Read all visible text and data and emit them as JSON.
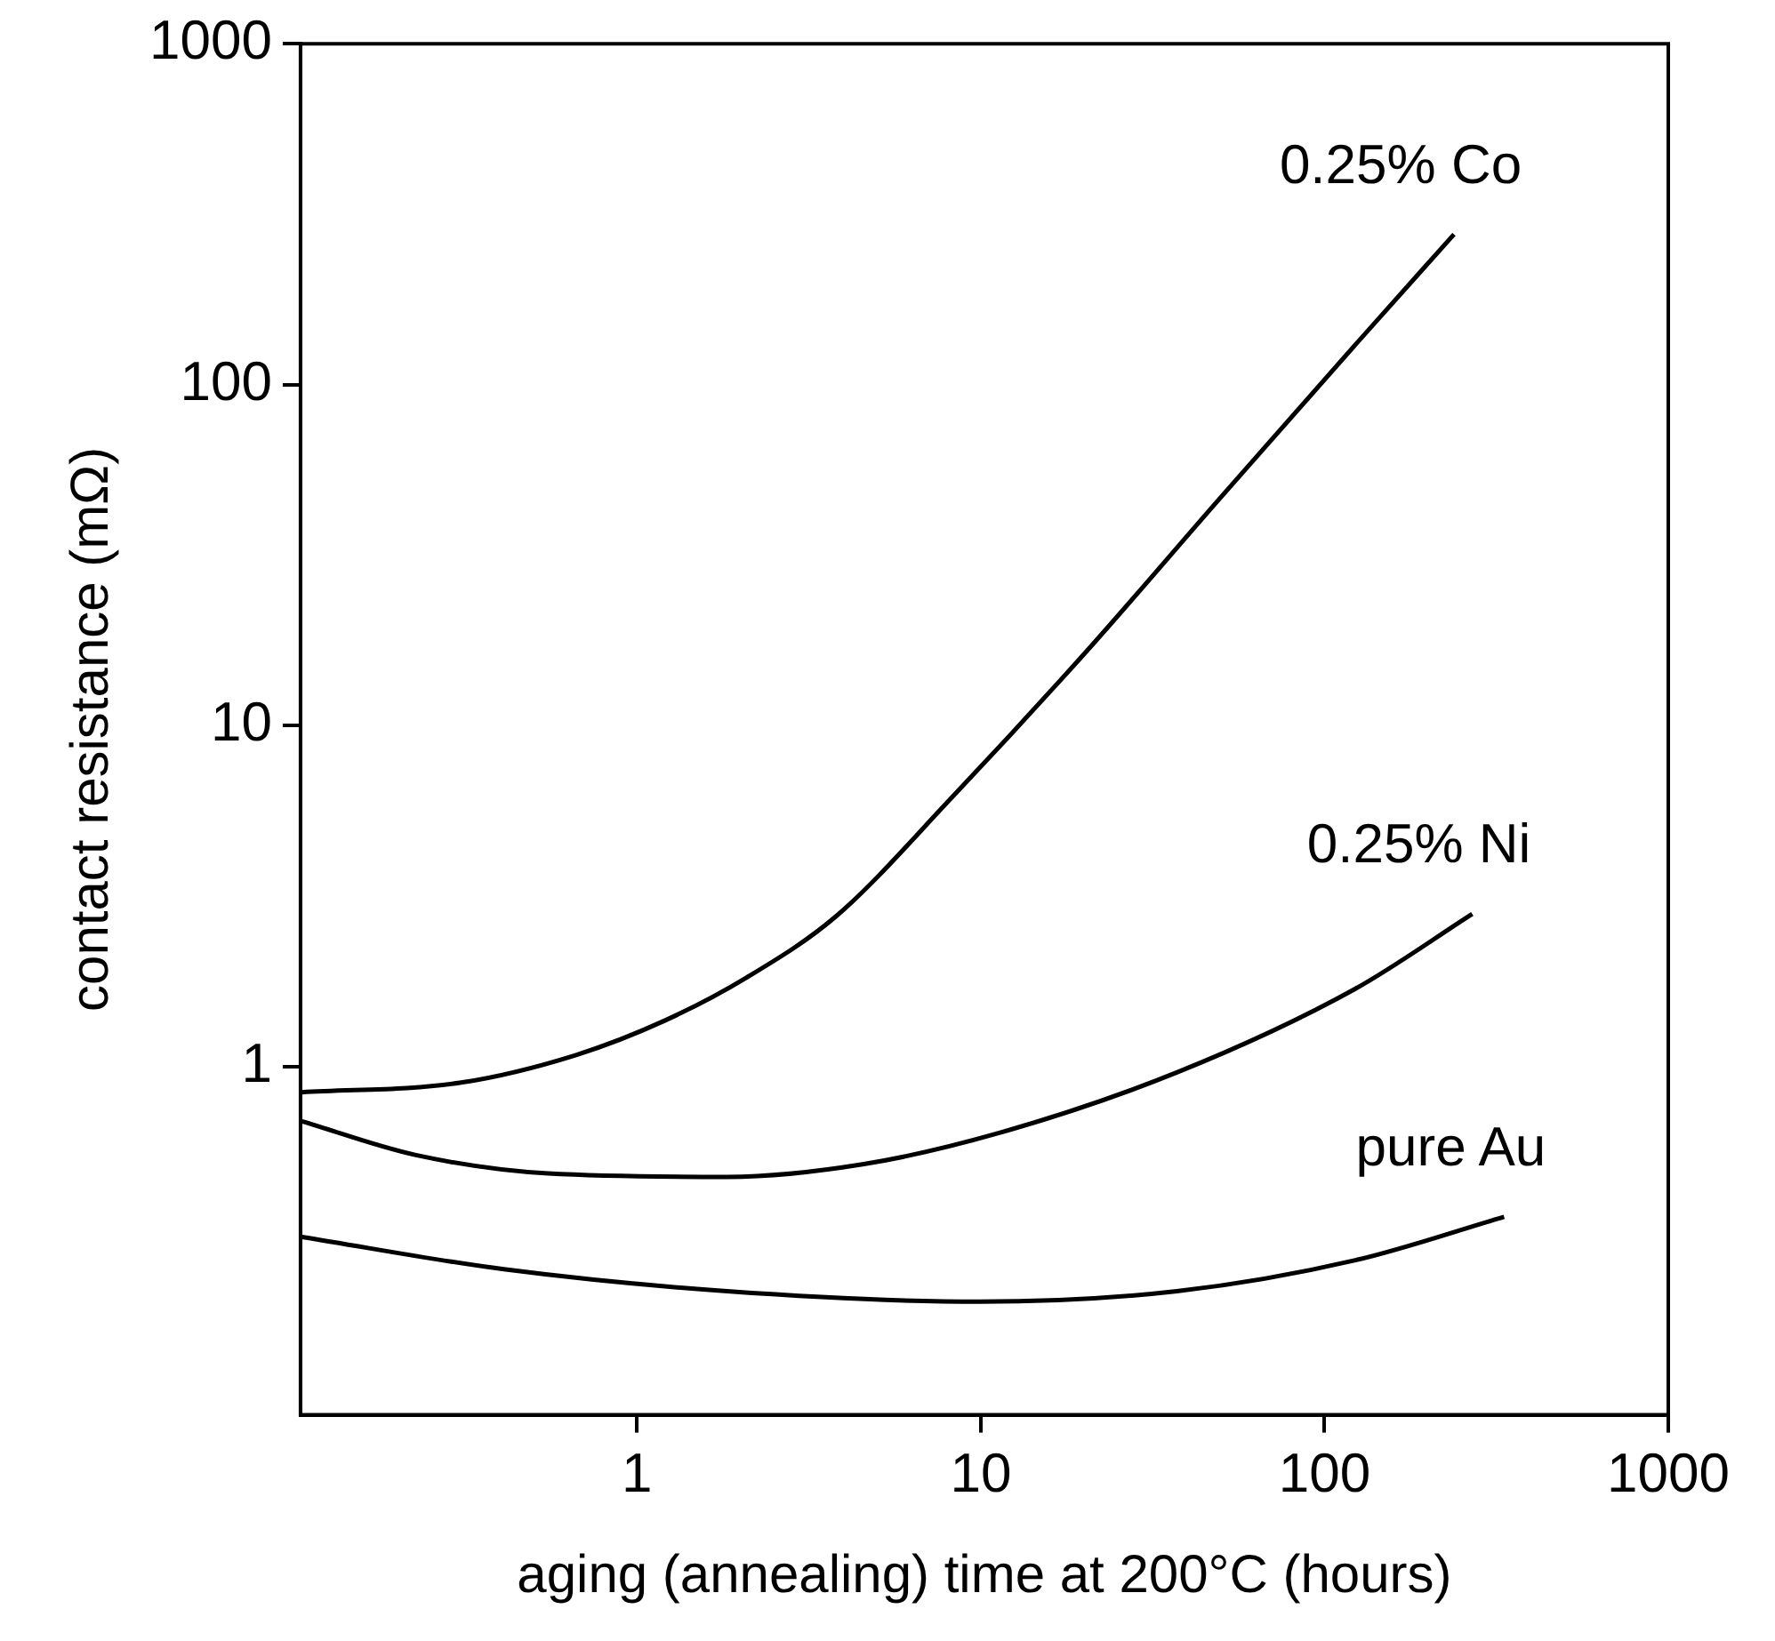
{
  "chart_data": {
    "type": "line",
    "xlabel": "aging (annealing) time at 200°C (hours)",
    "ylabel": "contact resistance (mΩ)",
    "log": "xy",
    "xlim": [
      0.105,
      1000
    ],
    "ylim": [
      0.095,
      1000
    ],
    "xticks": [
      1,
      10,
      100,
      1000
    ],
    "yticks": [
      1,
      10,
      100,
      1000
    ],
    "grid": false,
    "legend": false,
    "marker": "none",
    "line_style": "solid",
    "series": [
      {
        "name": "0.25% Co",
        "color": "#000000",
        "x": [
          0.106,
          0.305,
          0.665,
          1.2,
          2.08,
          3.8,
          8.3,
          20.3,
          50,
          123,
          238
        ],
        "values": [
          0.84,
          0.895,
          1.08,
          1.36,
          1.82,
          2.76,
          6.2,
          16.5,
          46.8,
          131,
          276
        ]
      },
      {
        "name": "0.25% Ni",
        "color": "#000000",
        "x": [
          0.106,
          0.226,
          0.552,
          1.83,
          4.53,
          11.2,
          37.2,
          123,
          269
        ],
        "values": [
          0.69,
          0.55,
          0.485,
          0.474,
          0.516,
          0.636,
          0.96,
          1.69,
          2.8
        ]
      },
      {
        "name": "pure Au",
        "color": "#000000",
        "x": [
          0.106,
          0.41,
          1.83,
          9.9,
          37.2,
          123,
          333
        ],
        "values": [
          0.316,
          0.254,
          0.219,
          0.204,
          0.219,
          0.27,
          0.362
        ]
      }
    ]
  }
}
